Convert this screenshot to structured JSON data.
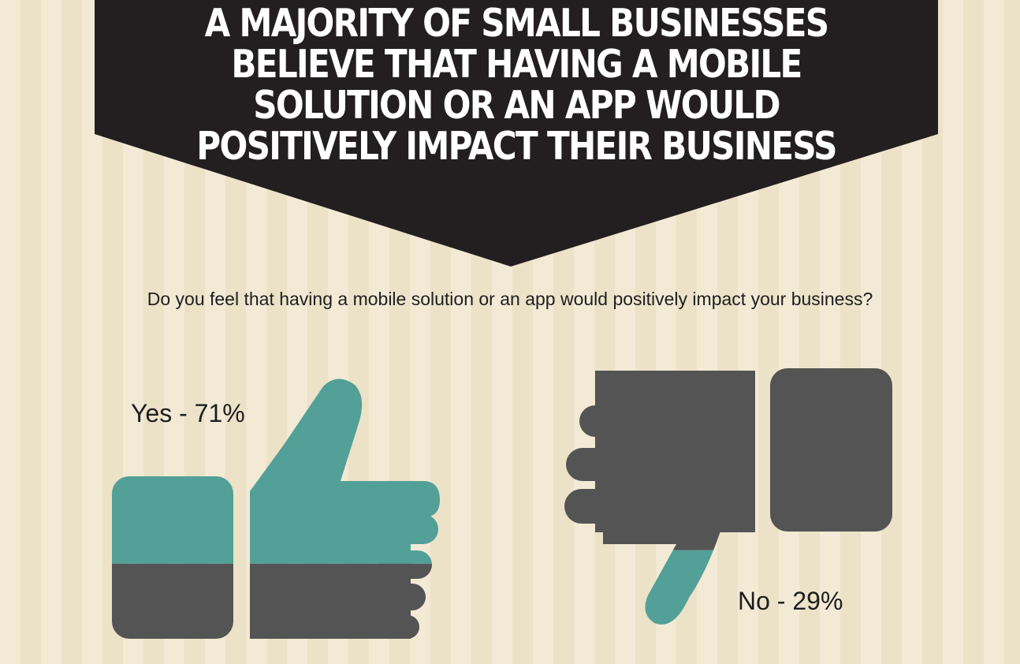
{
  "headline": "A MAJORITY OF SMALL BUSINESSES BELIEVE THAT HAVING A MOBILE SOLUTION OR AN APP WOULD POSITIVELY IMPACT THEIR BUSINESS",
  "question": "Do you feel that having a mobile solution or an app would positively impact your business?",
  "colors": {
    "teal": "#52a097",
    "dark_gray": "#545454",
    "banner": "#231f20",
    "background": "#f3ead6"
  },
  "chart_data": {
    "type": "pie",
    "title": "A MAJORITY OF SMALL BUSINESSES BELIEVE THAT HAVING A MOBILE SOLUTION OR AN APP WOULD POSITIVELY IMPACT THEIR BUSINESS",
    "question": "Do you feel that having a mobile solution or an app would positively impact your business?",
    "categories": [
      "Yes",
      "No"
    ],
    "values": [
      71,
      29
    ],
    "unit": "%",
    "labels": {
      "yes": "Yes - 71%",
      "no": "No - 29%"
    },
    "icons": [
      "thumbs-up-icon",
      "thumbs-down-icon"
    ]
  }
}
